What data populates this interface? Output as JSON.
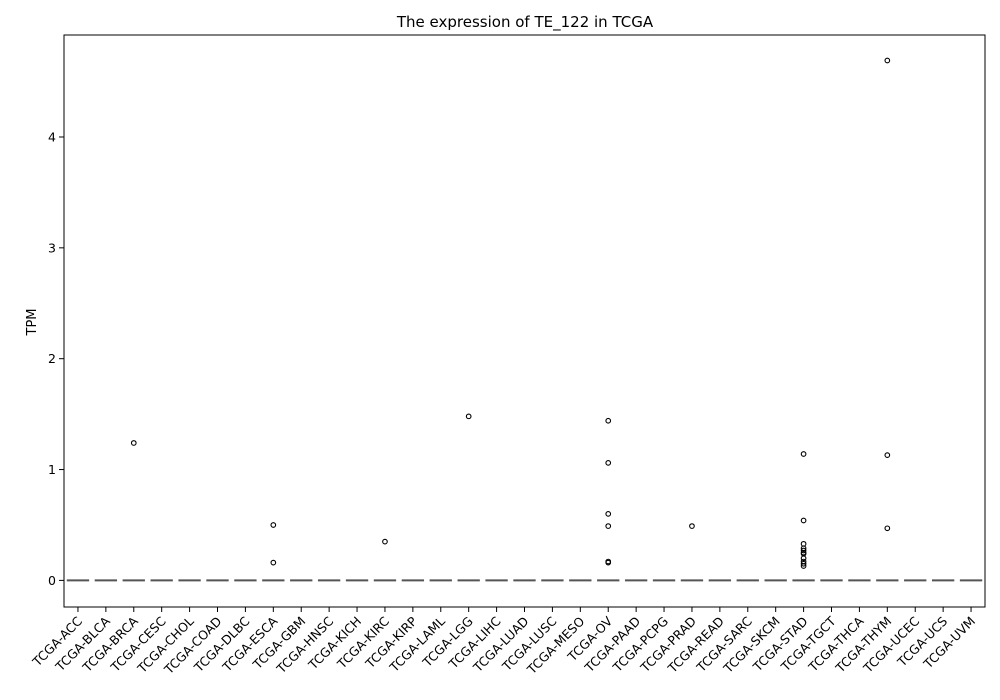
{
  "chart_data": {
    "type": "box",
    "title": "The expression of TE_122 in TCGA",
    "xlabel": "",
    "ylabel": "TPM",
    "ylim": [
      -0.24,
      4.92
    ],
    "yticks": [
      0,
      1,
      2,
      3,
      4
    ],
    "grid": false,
    "legend": "none",
    "categories": [
      "TCGA-ACC",
      "TCGA-BLCA",
      "TCGA-BRCA",
      "TCGA-CESC",
      "TCGA-CHOL",
      "TCGA-COAD",
      "TCGA-DLBC",
      "TCGA-ESCA",
      "TCGA-GBM",
      "TCGA-HNSC",
      "TCGA-KICH",
      "TCGA-KIRC",
      "TCGA-KIRP",
      "TCGA-LAML",
      "TCGA-LGG",
      "TCGA-LIHC",
      "TCGA-LUAD",
      "TCGA-LUSC",
      "TCGA-MESO",
      "TCGA-OV",
      "TCGA-PAAD",
      "TCGA-PCPG",
      "TCGA-PRAD",
      "TCGA-READ",
      "TCGA-SARC",
      "TCGA-SKCM",
      "TCGA-STAD",
      "TCGA-TGCT",
      "TCGA-THCA",
      "TCGA-THYM",
      "TCGA-UCEC",
      "TCGA-UCS",
      "TCGA-UVM"
    ],
    "median": 0,
    "outliers": [
      {
        "category": "TCGA-BRCA",
        "values": [
          1.24
        ]
      },
      {
        "category": "TCGA-ESCA",
        "values": [
          0.5,
          0.16
        ]
      },
      {
        "category": "TCGA-KIRC",
        "values": [
          0.35
        ]
      },
      {
        "category": "TCGA-LGG",
        "values": [
          1.48
        ]
      },
      {
        "category": "TCGA-OV",
        "values": [
          1.44,
          1.06,
          0.6,
          0.49,
          0.17,
          0.16
        ]
      },
      {
        "category": "TCGA-PRAD",
        "values": [
          0.49
        ]
      },
      {
        "category": "TCGA-STAD",
        "values": [
          1.14,
          0.54,
          0.33,
          0.29,
          0.27,
          0.25,
          0.24,
          0.2,
          0.17,
          0.15,
          0.13
        ]
      },
      {
        "category": "TCGA-THYM",
        "values": [
          4.69,
          1.13,
          0.47
        ]
      }
    ],
    "colors": {
      "axis": "#000000",
      "median": "#555555",
      "marker": "#000000"
    }
  }
}
